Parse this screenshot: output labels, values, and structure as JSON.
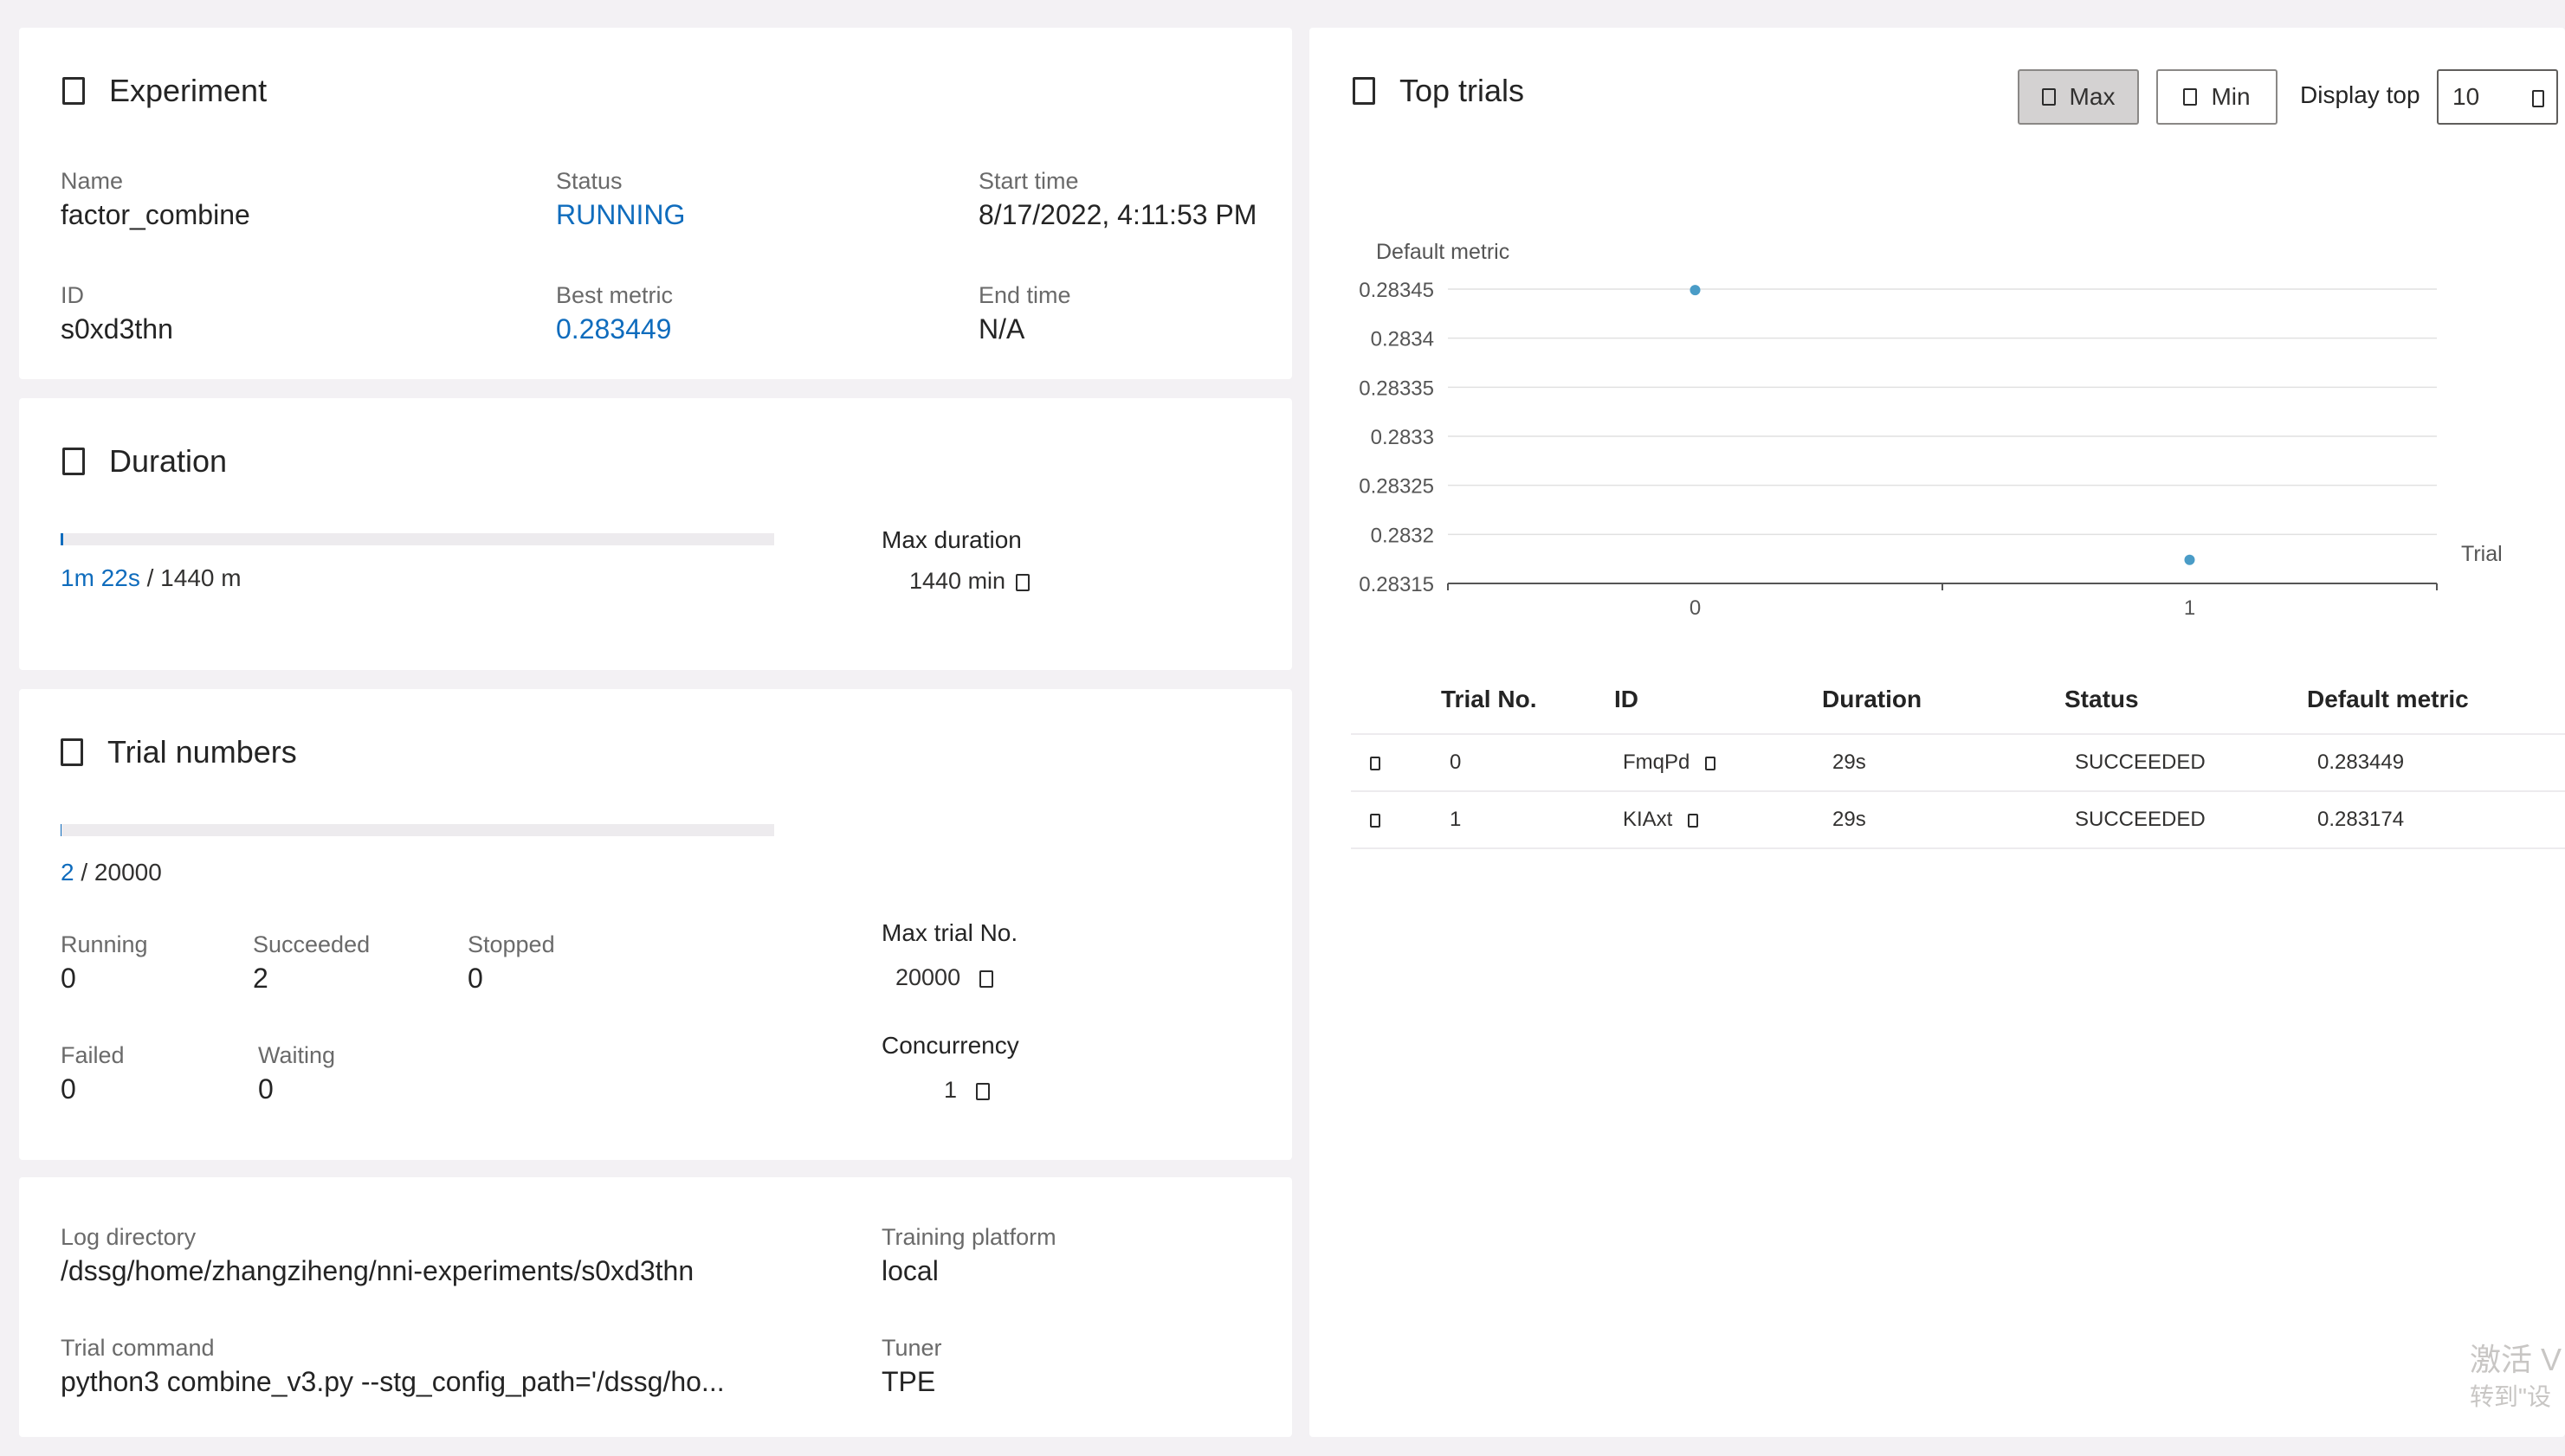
{
  "experiment": {
    "title": "Experiment",
    "name_label": "Name",
    "name": "factor_combine",
    "status_label": "Status",
    "status": "RUNNING",
    "start_label": "Start time",
    "start": "8/17/2022, 4:11:53 PM",
    "id_label": "ID",
    "id": "s0xd3thn",
    "best_label": "Best metric",
    "best": "0.283449",
    "end_label": "End time",
    "end": "N/A"
  },
  "duration": {
    "title": "Duration",
    "elapsed": "1m 22s",
    "total": "/ 1440 m",
    "progress_fraction": 0.00095,
    "max_label": "Max duration",
    "max_value": "1440 min"
  },
  "trial_numbers": {
    "title": "Trial numbers",
    "done": "2",
    "total": "/ 20000",
    "progress_fraction": 0.0001,
    "running_label": "Running",
    "running": "0",
    "succeeded_label": "Succeeded",
    "succeeded": "2",
    "stopped_label": "Stopped",
    "stopped": "0",
    "failed_label": "Failed",
    "failed": "0",
    "waiting_label": "Waiting",
    "waiting": "0",
    "max_trial_label": "Max trial No.",
    "max_trial": "20000",
    "concurrency_label": "Concurrency",
    "concurrency": "1"
  },
  "config": {
    "logdir_label": "Log directory",
    "logdir": "/dssg/home/zhangziheng/nni-experiments/s0xd3thn",
    "platform_label": "Training platform",
    "platform": "local",
    "command_label": "Trial command",
    "command": "python3 combine_v3.py --stg_config_path='/dssg/ho...",
    "tuner_label": "Tuner",
    "tuner": "TPE"
  },
  "top_trials": {
    "title": "Top trials",
    "max_label": "Max",
    "min_label": "Min",
    "display_top_label": "Display top",
    "display_top_value": "10",
    "columns": [
      "Trial No.",
      "ID",
      "Duration",
      "Status",
      "Default metric"
    ],
    "rows": [
      {
        "no": "0",
        "id": "FmqPd",
        "duration": "29s",
        "status": "SUCCEEDED",
        "metric": "0.283449"
      },
      {
        "no": "1",
        "id": "KIAxt",
        "duration": "29s",
        "status": "SUCCEEDED",
        "metric": "0.283174"
      }
    ]
  },
  "chart_data": {
    "type": "scatter",
    "ylabel": "Default metric",
    "xlabel": "Trial",
    "x_ticks": [
      "0",
      "1"
    ],
    "y_ticks": [
      "0.28345",
      "0.2834",
      "0.28335",
      "0.2833",
      "0.28325",
      "0.2832",
      "0.28315"
    ],
    "ylim": [
      0.28315,
      0.28345
    ],
    "xlim": [
      -0.5,
      1.5
    ],
    "points": [
      {
        "x": 0,
        "y": 0.283449
      },
      {
        "x": 1,
        "y": 0.283174
      }
    ],
    "color": "#4a9cc7"
  },
  "watermark": {
    "line1": "激活 V",
    "line2": "转到\"设"
  }
}
